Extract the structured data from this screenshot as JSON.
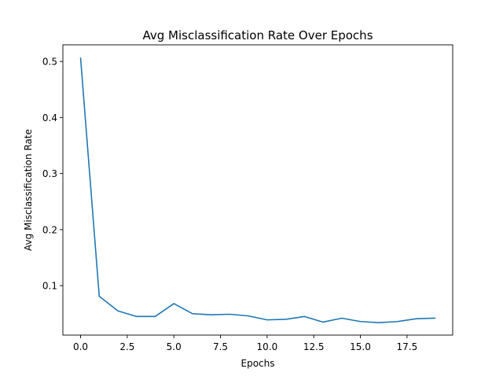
{
  "chart_data": {
    "type": "line",
    "title": "Avg Misclassification Rate Over Epochs",
    "xlabel": "Epochs",
    "ylabel": "Avg Misclassification Rate",
    "xlim": [
      -0.95,
      19.95
    ],
    "ylim": [
      0.0118,
      0.5296
    ],
    "xticks": [
      0.0,
      2.5,
      5.0,
      7.5,
      10.0,
      12.5,
      15.0,
      17.5
    ],
    "xtick_labels": [
      "0.0",
      "2.5",
      "5.0",
      "7.5",
      "10.0",
      "12.5",
      "15.0",
      "17.5"
    ],
    "yticks": [
      0.1,
      0.2,
      0.3,
      0.4,
      0.5
    ],
    "ytick_labels": [
      "0.1",
      "0.2",
      "0.3",
      "0.4",
      "0.5"
    ],
    "grid": false,
    "legend": "none",
    "series": [
      {
        "color": "#1f77b4",
        "x": [
          0,
          1,
          2,
          3,
          4,
          5,
          6,
          7,
          8,
          9,
          10,
          11,
          12,
          13,
          14,
          15,
          16,
          17,
          18,
          19
        ],
        "y": [
          0.506,
          0.081,
          0.055,
          0.045,
          0.045,
          0.068,
          0.05,
          0.048,
          0.049,
          0.046,
          0.039,
          0.04,
          0.045,
          0.035,
          0.042,
          0.036,
          0.034,
          0.036,
          0.041,
          0.042
        ]
      }
    ]
  }
}
